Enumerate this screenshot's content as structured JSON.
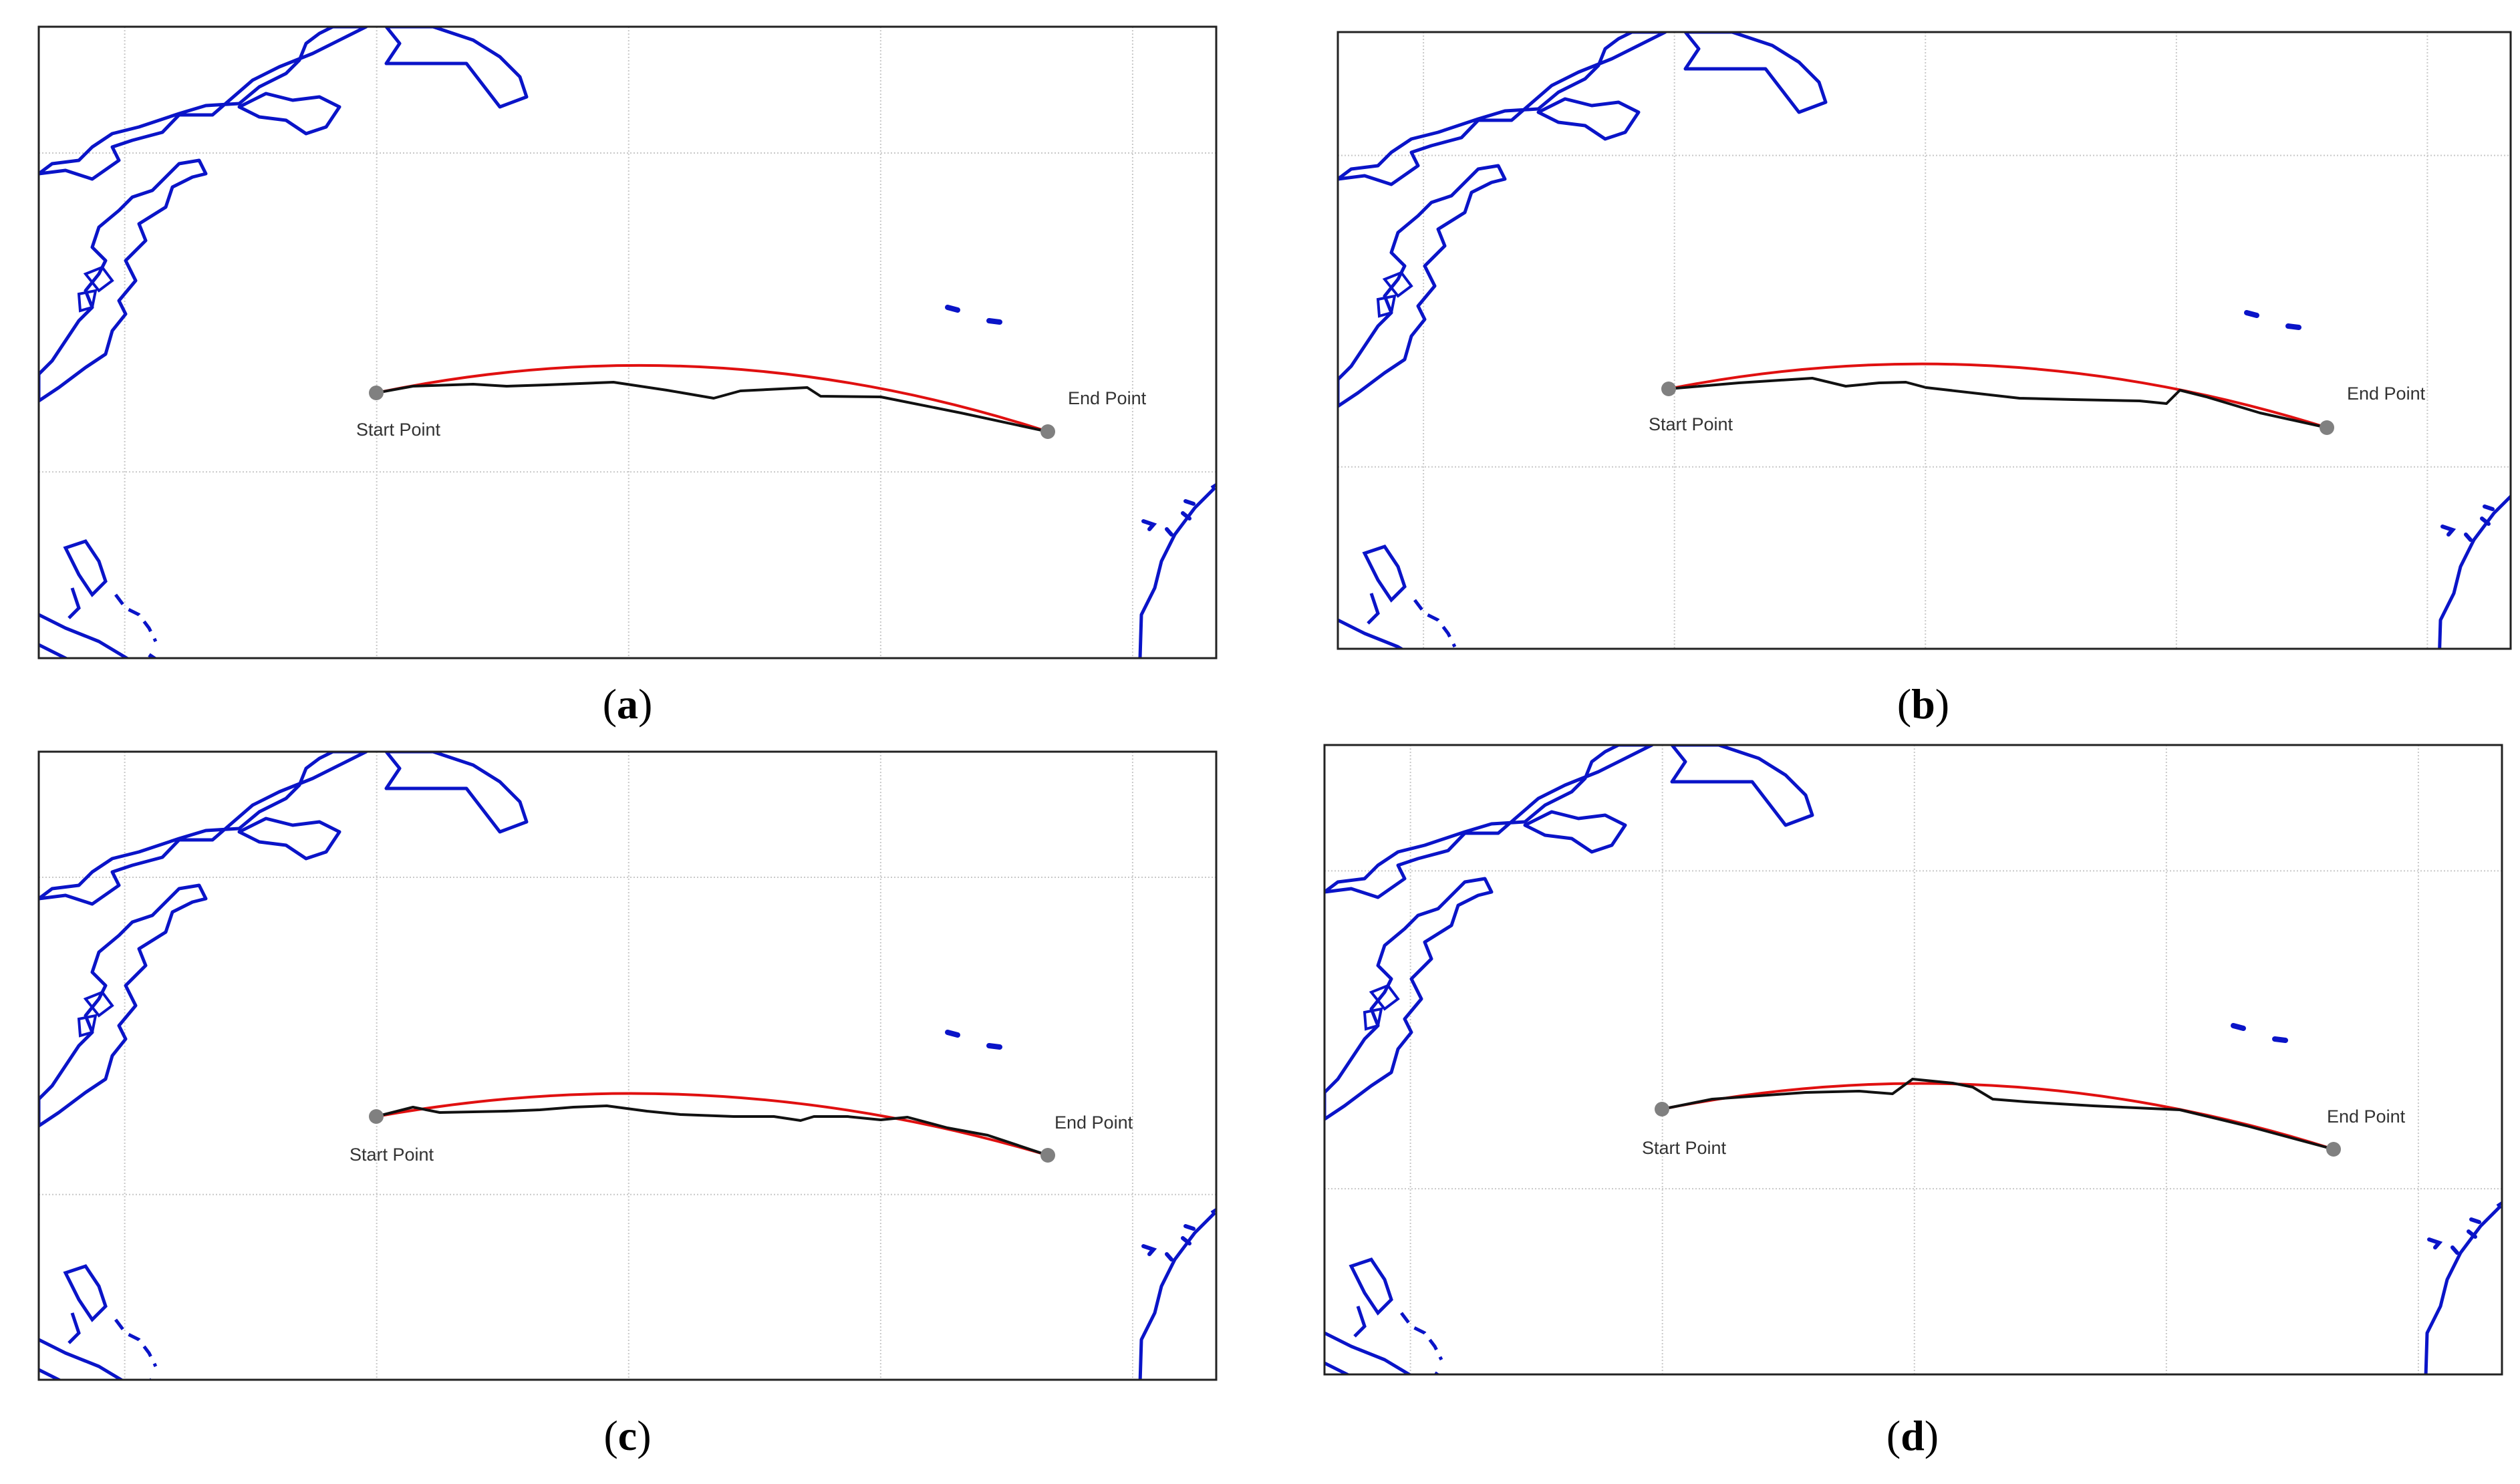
{
  "figure": {
    "panels": [
      {
        "id": "a",
        "caption": {
          "open": "(",
          "letter": "a",
          "close": ")"
        },
        "start_label": "Start Point",
        "end_label": "End Point"
      },
      {
        "id": "b",
        "caption": {
          "open": "(",
          "letter": "b",
          "close": ")"
        },
        "start_label": "Start Point",
        "end_label": "End Point"
      },
      {
        "id": "c",
        "caption": {
          "open": "(",
          "letter": "c",
          "close": ")"
        },
        "start_label": "Start Point",
        "end_label": "End Point"
      },
      {
        "id": "d",
        "caption": {
          "open": "(",
          "letter": "d",
          "close": ")"
        },
        "start_label": "Start Point",
        "end_label": "End Point"
      }
    ]
  },
  "colors": {
    "coastline": "#0a14c8",
    "great_circle_route": "#e01010",
    "planned_route": "#111111",
    "endpoint_marker": "#808080",
    "grid": "#c8c8c8",
    "frame": "#222222"
  },
  "legend": "none"
}
